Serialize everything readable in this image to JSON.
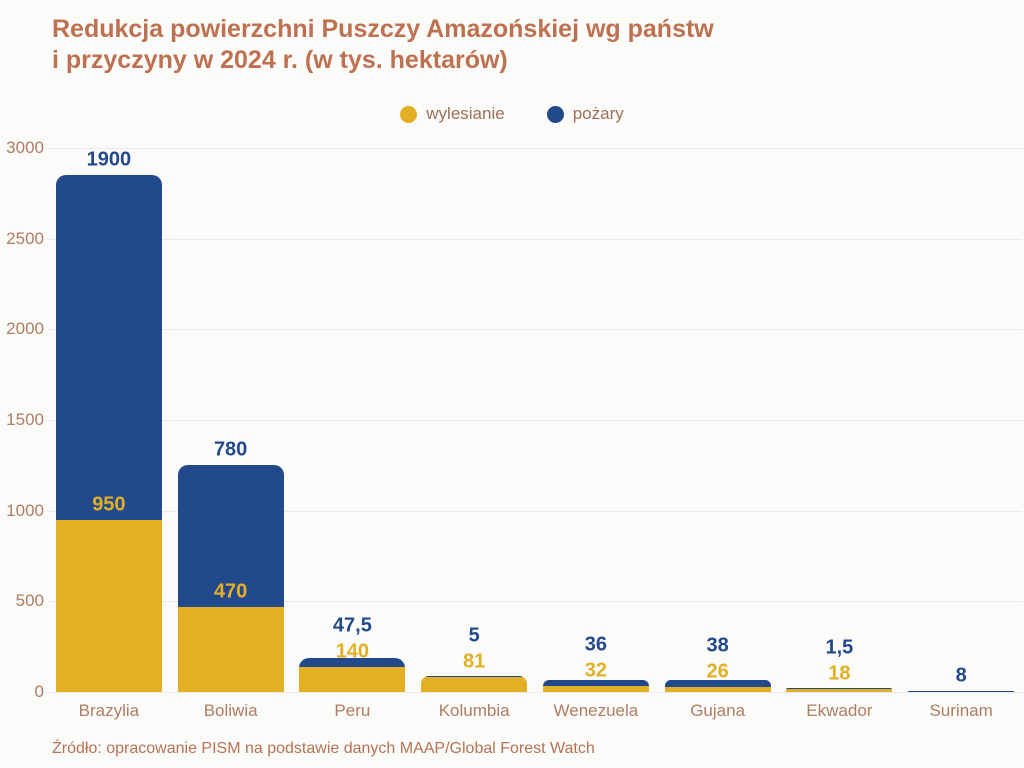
{
  "header": {
    "title_line1": "Redukcja powierzchni Puszczy Amazońskiej wg państw",
    "title_line2": "i przyczyny w 2024 r. (w tys. hektarów)"
  },
  "footer": {
    "source": "Źródło: opracowanie PISM na podstawie danych MAAP/Global Forest Watch"
  },
  "colors": {
    "title_text": "#BE7150",
    "axis_text": "#AE7D62",
    "legend_text": "#9C6F57",
    "source_text": "#B57355",
    "grid": "#E9E9E7",
    "background": "#FBFBF9",
    "wylesianie": "#E3AF25",
    "pozary": "#21498B"
  },
  "chart_data": {
    "type": "bar",
    "stacked": true,
    "title": "Redukcja powierzchni Puszczy Amazońskiej wg państw i przyczyny w 2024 r. (w tys. hektarów)",
    "categories": [
      "Brazylia",
      "Boliwia",
      "Peru",
      "Kolumbia",
      "Wenezuela",
      "Gujana",
      "Ekwador",
      "Surinam"
    ],
    "series": [
      {
        "name": "wylesianie",
        "color": "#E3AF25",
        "values": [
          950,
          470,
          140,
          81,
          32,
          26,
          18,
          0
        ]
      },
      {
        "name": "pożary",
        "color": "#21498B",
        "values": [
          1900,
          780,
          47.5,
          5,
          36,
          38,
          1.5,
          8
        ]
      }
    ],
    "value_labels": {
      "wylesianie": [
        "950",
        "470",
        "140",
        "81",
        "32",
        "26",
        "18",
        ""
      ],
      "pozary": [
        "1900",
        "780",
        "47,5",
        "5",
        "36",
        "38",
        "1,5",
        "8"
      ]
    },
    "ylabel": "",
    "xlabel": "",
    "ylim": [
      0,
      3000
    ],
    "yticks": [
      0,
      500,
      1000,
      1500,
      2000,
      2500,
      3000
    ],
    "grid": true,
    "legend_position": "top",
    "decimal_separator": ","
  }
}
